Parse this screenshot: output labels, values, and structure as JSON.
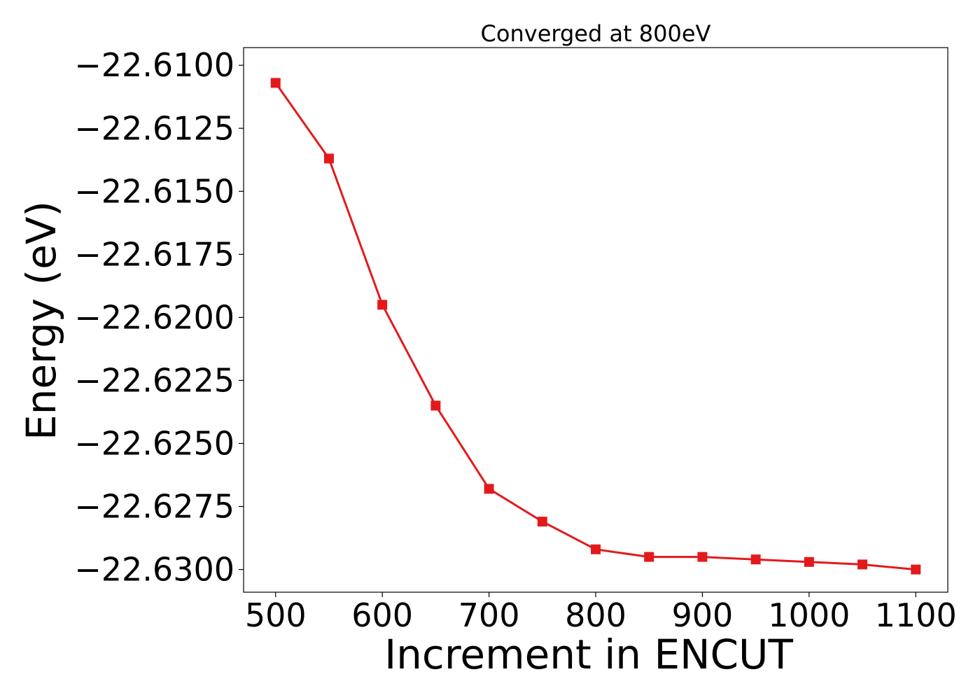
{
  "chart_data": {
    "type": "line",
    "title": "Converged at 800eV",
    "xlabel": "Increment in ENCUT",
    "ylabel": "Energy (eV)",
    "xlim": [
      470,
      1130
    ],
    "ylim": [
      -22.6309,
      -22.6093
    ],
    "xticks": [
      500,
      600,
      700,
      800,
      900,
      1000,
      1100
    ],
    "xtick_labels": [
      "500",
      "600",
      "700",
      "800",
      "900",
      "1000",
      "1100"
    ],
    "yticks": [
      -22.61,
      -22.6125,
      -22.615,
      -22.6175,
      -22.62,
      -22.6225,
      -22.625,
      -22.6275,
      -22.63
    ],
    "ytick_labels": [
      "−22.6100",
      "−22.6125",
      "−22.6150",
      "−22.6175",
      "−22.6200",
      "−22.6225",
      "−22.6250",
      "−22.6275",
      "−22.6300"
    ],
    "grid": false,
    "series": [
      {
        "color": "#e31a1c",
        "marker": "square",
        "x": [
          500,
          550,
          600,
          650,
          700,
          750,
          800,
          850,
          900,
          950,
          1000,
          1050,
          1100
        ],
        "y": [
          -22.6107,
          -22.6137,
          -22.6195,
          -22.6235,
          -22.6268,
          -22.6281,
          -22.6292,
          -22.6295,
          -22.6295,
          -22.6296,
          -22.6297,
          -22.6298,
          -22.63
        ]
      }
    ]
  }
}
